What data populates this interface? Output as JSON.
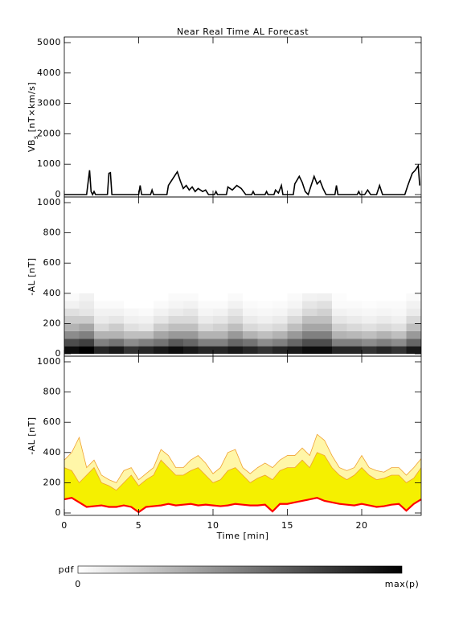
{
  "title": "Near Real Time AL Forecast",
  "chart_data": [
    {
      "type": "line",
      "ylabel": [
        "VB",
        "s",
        " [nT×km/s]"
      ],
      "xlim": [
        0,
        24
      ],
      "xticks": [
        0,
        5,
        10,
        15,
        20
      ],
      "ylim": [
        0,
        5000
      ],
      "yticks": [
        0,
        1000,
        2000,
        3000,
        4000,
        5000
      ],
      "color": "#000000",
      "x": [
        0,
        1.5,
        1.6,
        1.7,
        1.8,
        1.9,
        2.0,
        2.1,
        2.9,
        3.0,
        3.1,
        3.2,
        5.0,
        5.1,
        5.2,
        5.8,
        5.9,
        6.0,
        6.9,
        7.0,
        7.2,
        7.4,
        7.6,
        7.8,
        8.0,
        8.2,
        8.4,
        8.6,
        8.8,
        9.0,
        9.3,
        9.5,
        9.7,
        10.1,
        10.2,
        10.3,
        10.9,
        11.0,
        11.3,
        11.6,
        11.9,
        12.2,
        12.6,
        12.7,
        12.8,
        13.5,
        13.6,
        13.7,
        14.1,
        14.2,
        14.4,
        14.6,
        14.7,
        15.4,
        15.5,
        15.8,
        16.0,
        16.2,
        16.4,
        16.6,
        16.8,
        17.0,
        17.2,
        17.4,
        17.6,
        18.2,
        18.3,
        18.4,
        19.7,
        19.8,
        19.9,
        20.2,
        20.4,
        20.6,
        21.0,
        21.2,
        21.4,
        22.9,
        23.1,
        23.4,
        23.6,
        23.8,
        23.9
      ],
      "values": [
        0,
        0,
        400,
        800,
        100,
        0,
        100,
        0,
        0,
        700,
        720,
        0,
        0,
        300,
        0,
        0,
        150,
        0,
        0,
        300,
        450,
        600,
        750,
        450,
        200,
        300,
        150,
        250,
        100,
        200,
        100,
        150,
        0,
        0,
        100,
        0,
        0,
        250,
        150,
        300,
        200,
        0,
        0,
        100,
        0,
        0,
        100,
        0,
        0,
        150,
        50,
        300,
        0,
        0,
        350,
        600,
        400,
        100,
        0,
        300,
        600,
        350,
        450,
        200,
        0,
        0,
        300,
        0,
        0,
        100,
        0,
        0,
        150,
        0,
        0,
        300,
        0,
        0,
        300,
        700,
        800,
        950,
        300
      ]
    },
    {
      "type": "heatmap",
      "ylabel": "-AL [nT]",
      "xlim": [
        0,
        24
      ],
      "xticks": [
        0,
        5,
        10,
        15,
        20
      ],
      "ylim": [
        0,
        1000
      ],
      "yticks": [
        0,
        200,
        400,
        600,
        800,
        1000
      ],
      "x_bins": [
        0,
        1,
        2,
        3,
        4,
        5,
        6,
        7,
        8,
        9,
        10,
        11,
        12,
        13,
        14,
        15,
        16,
        17,
        18,
        19,
        20,
        21,
        22,
        23,
        24
      ],
      "y_bins": [
        0,
        50,
        100,
        150,
        200,
        250,
        300,
        350,
        400
      ],
      "z": [
        [
          0.95,
          0.7,
          0.45,
          0.3,
          0.2,
          0.12,
          0.05,
          0.02
        ],
        [
          1,
          0.75,
          0.5,
          0.35,
          0.2,
          0.1,
          0.08,
          0.05
        ],
        [
          0.85,
          0.5,
          0.3,
          0.15,
          0.08,
          0.05,
          0.02,
          0
        ],
        [
          0.9,
          0.55,
          0.3,
          0.2,
          0.1,
          0.05,
          0.02,
          0
        ],
        [
          0.8,
          0.45,
          0.25,
          0.12,
          0.06,
          0.03,
          0,
          0
        ],
        [
          0.85,
          0.5,
          0.25,
          0.1,
          0.05,
          0.02,
          0,
          0
        ],
        [
          0.9,
          0.55,
          0.35,
          0.2,
          0.1,
          0.05,
          0.02,
          0
        ],
        [
          0.95,
          0.65,
          0.4,
          0.25,
          0.15,
          0.08,
          0.04,
          0.02
        ],
        [
          0.9,
          0.6,
          0.4,
          0.25,
          0.15,
          0.1,
          0.05,
          0.02
        ],
        [
          0.85,
          0.5,
          0.3,
          0.15,
          0.08,
          0.04,
          0.02,
          0
        ],
        [
          0.85,
          0.5,
          0.3,
          0.18,
          0.1,
          0.05,
          0.02,
          0
        ],
        [
          0.9,
          0.6,
          0.4,
          0.25,
          0.15,
          0.1,
          0.05,
          0.02
        ],
        [
          0.85,
          0.55,
          0.3,
          0.15,
          0.08,
          0.04,
          0.02,
          0
        ],
        [
          0.8,
          0.45,
          0.25,
          0.12,
          0.06,
          0.03,
          0.01,
          0
        ],
        [
          0.85,
          0.5,
          0.3,
          0.15,
          0.08,
          0.04,
          0.02,
          0
        ],
        [
          0.9,
          0.6,
          0.4,
          0.25,
          0.15,
          0.08,
          0.04,
          0.02
        ],
        [
          0.95,
          0.7,
          0.5,
          0.35,
          0.25,
          0.15,
          0.1,
          0.05
        ],
        [
          0.95,
          0.7,
          0.5,
          0.35,
          0.25,
          0.18,
          0.12,
          0.06
        ],
        [
          0.85,
          0.5,
          0.3,
          0.18,
          0.1,
          0.05,
          0.02,
          0.01
        ],
        [
          0.85,
          0.5,
          0.28,
          0.15,
          0.08,
          0.04,
          0.02,
          0
        ],
        [
          0.8,
          0.45,
          0.25,
          0.12,
          0.06,
          0.03,
          0.01,
          0
        ],
        [
          0.85,
          0.5,
          0.3,
          0.15,
          0.08,
          0.04,
          0.02,
          0
        ],
        [
          0.8,
          0.45,
          0.25,
          0.12,
          0.06,
          0.03,
          0.02,
          0
        ],
        [
          0.9,
          0.6,
          0.4,
          0.25,
          0.15,
          0.08,
          0.05,
          0.02
        ]
      ],
      "colorbar_label": "pdf",
      "colorbar_labels": [
        "0",
        "max(p)"
      ]
    },
    {
      "type": "band",
      "ylabel": "-AL [nT]",
      "xlabel": "Time [min]",
      "xlim": [
        0,
        24
      ],
      "xticks": [
        0,
        5,
        10,
        15,
        20
      ],
      "ylim": [
        0,
        1000
      ],
      "yticks": [
        0,
        200,
        400,
        600,
        800,
        1000
      ],
      "x": [
        0,
        0.5,
        1,
        1.5,
        2,
        2.5,
        3,
        3.5,
        4,
        4.5,
        5,
        5.5,
        6,
        6.5,
        7,
        7.5,
        8,
        8.5,
        9,
        9.5,
        10,
        10.5,
        11,
        11.5,
        12,
        12.5,
        13,
        13.5,
        14,
        14.5,
        15,
        15.5,
        16,
        16.5,
        17,
        17.5,
        18,
        18.5,
        19,
        19.5,
        20,
        20.5,
        21,
        21.5,
        22,
        22.5,
        23,
        23.5,
        24
      ],
      "series": [
        {
          "color": "#fff6a8",
          "values": [
            350,
            400,
            500,
            300,
            350,
            250,
            220,
            200,
            280,
            300,
            220,
            260,
            300,
            420,
            380,
            300,
            300,
            350,
            380,
            330,
            260,
            300,
            400,
            420,
            300,
            260,
            300,
            330,
            300,
            350,
            380,
            380,
            430,
            380,
            520,
            480,
            380,
            300,
            280,
            300,
            380,
            300,
            280,
            270,
            300,
            300,
            250,
            300,
            360
          ]
        },
        {
          "color": "#f5f000",
          "values": [
            300,
            280,
            200,
            250,
            300,
            200,
            180,
            150,
            200,
            250,
            180,
            220,
            250,
            350,
            300,
            250,
            250,
            280,
            300,
            250,
            200,
            220,
            280,
            300,
            250,
            200,
            230,
            250,
            220,
            280,
            300,
            300,
            350,
            300,
            400,
            380,
            300,
            250,
            220,
            250,
            300,
            250,
            220,
            230,
            250,
            250,
            200,
            230,
            300
          ]
        },
        {
          "color": "#ff0000",
          "values": [
            90,
            100,
            70,
            40,
            45,
            50,
            40,
            40,
            50,
            40,
            5,
            40,
            45,
            50,
            60,
            50,
            55,
            60,
            50,
            55,
            50,
            45,
            50,
            60,
            55,
            50,
            50,
            55,
            10,
            60,
            60,
            70,
            80,
            90,
            100,
            80,
            70,
            60,
            55,
            50,
            60,
            50,
            40,
            45,
            55,
            60,
            15,
            60,
            90
          ]
        }
      ]
    }
  ]
}
